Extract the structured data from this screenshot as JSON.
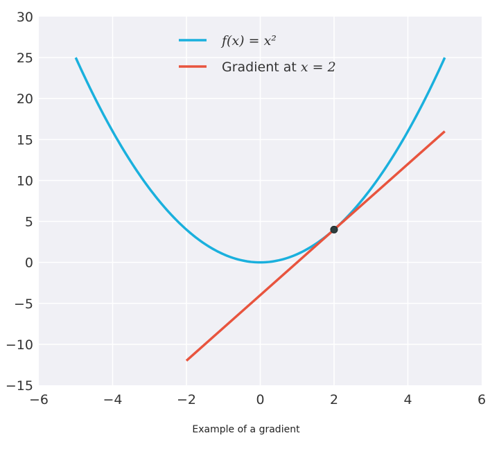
{
  "chart_data": {
    "type": "line",
    "xlim": [
      -6,
      6
    ],
    "ylim": [
      -15,
      30
    ],
    "x_ticks": [
      -6,
      -4,
      -2,
      0,
      2,
      4,
      6
    ],
    "y_ticks": [
      -15,
      -10,
      -5,
      0,
      5,
      10,
      15,
      20,
      25,
      30
    ],
    "x_tick_labels": [
      "−6",
      "−4",
      "−2",
      "0",
      "2",
      "4",
      "6"
    ],
    "y_tick_labels": [
      "−15",
      "−10",
      "−5",
      "0",
      "5",
      "10",
      "15",
      "20",
      "25",
      "30"
    ],
    "grid": true,
    "legend_position": "top-center",
    "series": [
      {
        "name": "f(x)=x²",
        "color": "#1ab0dd",
        "function": "x^2",
        "x_range": [
          -5,
          5
        ]
      },
      {
        "name": "Gradient at x=2",
        "color": "#e8543e",
        "x": [
          -2,
          5
        ],
        "y": [
          -12,
          16
        ]
      }
    ],
    "point": {
      "x": 2,
      "y": 4,
      "color": "#2e3e3e"
    },
    "legend": {
      "series1_math": "f(x) = x²",
      "series2_text": "Gradient at ",
      "series2_math": "x = 2"
    }
  },
  "caption": "Example of a gradient"
}
